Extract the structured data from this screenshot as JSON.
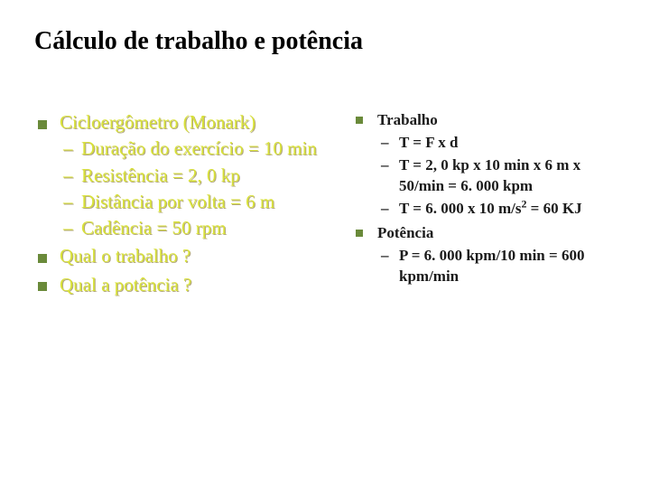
{
  "title": "Cálculo de trabalho e potência",
  "colors": {
    "bullet_square": "#6a8a3a",
    "left_text": "#d9e23a",
    "right_text": "#1a1a1a",
    "background": "#ffffff"
  },
  "left": {
    "items": [
      {
        "text": "Cicloergômetro (Monark)",
        "sub": [
          "Duração do exercício = 10 min",
          "Resistência = 2, 0 kp",
          "Distância por volta = 6 m",
          "Cadência = 50 rpm"
        ]
      },
      {
        "text": "Qual o trabalho ?",
        "sub": []
      },
      {
        "text": "Qual a potência ?",
        "sub": []
      }
    ]
  },
  "right": {
    "items": [
      {
        "text": "Trabalho",
        "sub": [
          "T = F x d",
          "T = 2, 0 kp x 10 min x 6 m x 50/min = 6. 000 kpm",
          "T = 6. 000 x 10 m/s² = 60 KJ"
        ]
      },
      {
        "text": "Potência",
        "sub": [
          "P = 6. 000 kpm/10 min = 600 kpm/min"
        ]
      }
    ]
  }
}
